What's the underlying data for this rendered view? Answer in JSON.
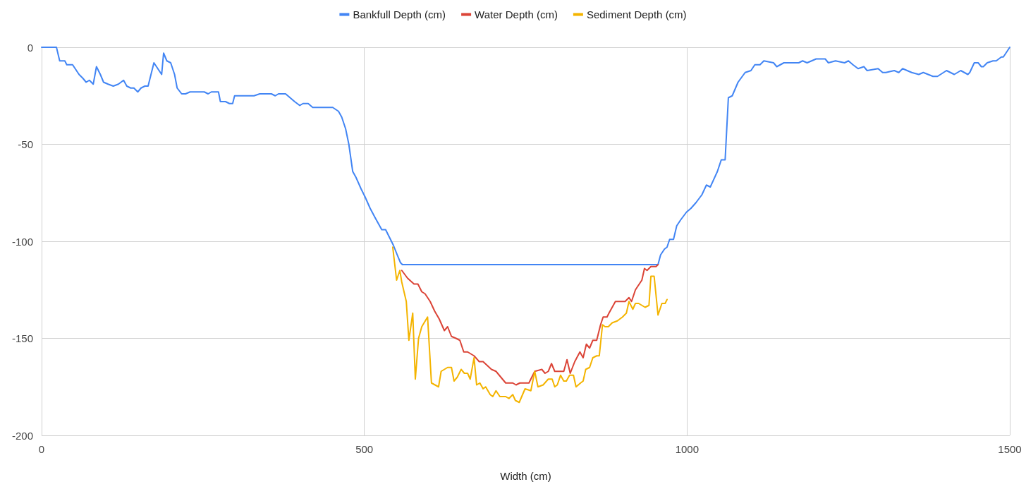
{
  "chart_data": {
    "type": "line",
    "xlabel": "Width (cm)",
    "xlim": [
      0,
      1500
    ],
    "xticks": [
      0,
      500,
      1000,
      1500
    ],
    "ylim": [
      -200,
      0
    ],
    "yticks": [
      -200,
      -150,
      -100,
      -50,
      0
    ],
    "grid": true,
    "legend": "top",
    "marker": "none",
    "line_style": "solid",
    "series": [
      {
        "name": "Bankfull Depth (cm)",
        "color": "#4285f4",
        "x": [
          0,
          23,
          28,
          36,
          39,
          48,
          52,
          58,
          64,
          69,
          74,
          80,
          85,
          91,
          96,
          103,
          111,
          119,
          127,
          132,
          138,
          143,
          149,
          154,
          160,
          165,
          174,
          182,
          186,
          189,
          194,
          200,
          206,
          210,
          217,
          223,
          230,
          252,
          258,
          263,
          274,
          277,
          285,
          291,
          296,
          299,
          329,
          338,
          356,
          362,
          367,
          378,
          385,
          392,
          400,
          405,
          413,
          420,
          427,
          444,
          451,
          460,
          465,
          471,
          476,
          482,
          487,
          495,
          501,
          509,
          517,
          522,
          527,
          533,
          539,
          545,
          551,
          556,
          559,
          955,
          959,
          965,
          969,
          973,
          979,
          984,
          990,
          999,
          1006,
          1014,
          1023,
          1030,
          1036,
          1047,
          1053,
          1059,
          1064,
          1070,
          1079,
          1090,
          1099,
          1105,
          1113,
          1119,
          1134,
          1139,
          1150,
          1159,
          1173,
          1179,
          1186,
          1200,
          1214,
          1219,
          1230,
          1244,
          1250,
          1257,
          1265,
          1274,
          1279,
          1296,
          1303,
          1308,
          1321,
          1328,
          1334,
          1348,
          1359,
          1366,
          1381,
          1388,
          1402,
          1414,
          1424,
          1435,
          1438,
          1445,
          1451,
          1456,
          1459,
          1465,
          1474,
          1479,
          1487,
          1490,
          1500
        ],
        "values": [
          0,
          0,
          -7,
          -7,
          -9,
          -9,
          -11,
          -14,
          -16,
          -18,
          -17,
          -19,
          -10,
          -14,
          -18,
          -19,
          -20,
          -19,
          -17,
          -20,
          -21,
          -21,
          -23,
          -21,
          -20,
          -20,
          -8,
          -12,
          -14,
          -3,
          -7,
          -8,
          -14,
          -21,
          -24,
          -24,
          -23,
          -23,
          -24,
          -23,
          -23,
          -28,
          -28,
          -29,
          -29,
          -25,
          -25,
          -24,
          -24,
          -25,
          -24,
          -24,
          -26,
          -28,
          -30,
          -29,
          -29,
          -31,
          -31,
          -31,
          -31,
          -33,
          -36,
          -42,
          -50,
          -64,
          -67,
          -73,
          -77,
          -83,
          -88,
          -91,
          -94,
          -94,
          -98,
          -102,
          -107,
          -111,
          -112,
          -112,
          -107,
          -104,
          -103,
          -99,
          -99,
          -92,
          -89,
          -85,
          -83,
          -80,
          -76,
          -71,
          -72,
          -64,
          -58,
          -58,
          -26,
          -25,
          -18,
          -13,
          -12,
          -9,
          -9,
          -7,
          -8,
          -10,
          -8,
          -8,
          -8,
          -7,
          -8,
          -6,
          -6,
          -8,
          -7,
          -8,
          -7,
          -9,
          -11,
          -10,
          -12,
          -11,
          -13,
          -13,
          -12,
          -13,
          -11,
          -13,
          -14,
          -13,
          -15,
          -15,
          -12,
          -14,
          -12,
          -14,
          -13,
          -8,
          -8,
          -10,
          -10,
          -8,
          -7,
          -7,
          -5,
          -5,
          0
        ]
      },
      {
        "name": "Water Depth (cm)",
        "color": "#db4437",
        "x": [
          558,
          567,
          577,
          583,
          589,
          594,
          602,
          609,
          616,
          624,
          629,
          635,
          642,
          648,
          654,
          660,
          670,
          678,
          684,
          697,
          704,
          719,
          730,
          735,
          741,
          755,
          764,
          775,
          780,
          785,
          790,
          795,
          809,
          814,
          819,
          826,
          834,
          839,
          844,
          849,
          854,
          860,
          866,
          870,
          876,
          879,
          889,
          904,
          910,
          914,
          920,
          930,
          934,
          938,
          944,
          952,
          955
        ],
        "values": [
          -115,
          -119,
          -122,
          -122,
          -126,
          -127,
          -131,
          -136,
          -140,
          -146,
          -144,
          -149,
          -150,
          -151,
          -157,
          -157,
          -159,
          -162,
          -162,
          -166,
          -167,
          -173,
          -173,
          -174,
          -173,
          -173,
          -167,
          -166,
          -168,
          -167,
          -163,
          -167,
          -167,
          -161,
          -168,
          -162,
          -157,
          -160,
          -153,
          -155,
          -151,
          -151,
          -143,
          -139,
          -139,
          -137,
          -131,
          -131,
          -129,
          -131,
          -125,
          -120,
          -114,
          -115,
          -113,
          -113,
          -112
        ]
      },
      {
        "name": "Sediment Depth (cm)",
        "color": "#f4b400",
        "x": [
          544,
          550,
          555,
          558,
          565,
          569,
          575,
          579,
          584,
          589,
          598,
          604,
          615,
          619,
          629,
          635,
          639,
          644,
          650,
          655,
          660,
          664,
          670,
          674,
          679,
          684,
          688,
          695,
          699,
          704,
          710,
          719,
          724,
          730,
          734,
          740,
          749,
          758,
          764,
          769,
          777,
          785,
          791,
          795,
          799,
          804,
          809,
          813,
          818,
          824,
          828,
          835,
          839,
          843,
          849,
          854,
          860,
          864,
          869,
          873,
          878,
          884,
          892,
          900,
          906,
          910,
          916,
          920,
          925,
          935,
          941,
          944,
          949,
          955,
          961,
          966,
          969
        ],
        "values": [
          -103,
          -120,
          -115,
          -121,
          -131,
          -151,
          -137,
          -171,
          -150,
          -144,
          -139,
          -173,
          -175,
          -167,
          -165,
          -165,
          -172,
          -170,
          -166,
          -168,
          -168,
          -171,
          -160,
          -174,
          -173,
          -176,
          -175,
          -179,
          -180,
          -177,
          -180,
          -180,
          -181,
          -179,
          -182,
          -183,
          -176,
          -177,
          -167,
          -175,
          -174,
          -171,
          -171,
          -175,
          -174,
          -169,
          -172,
          -172,
          -169,
          -169,
          -175,
          -173,
          -172,
          -166,
          -165,
          -160,
          -159,
          -159,
          -143,
          -144,
          -144,
          -142,
          -141,
          -139,
          -137,
          -131,
          -135,
          -132,
          -132,
          -134,
          -133,
          -118,
          -118,
          -138,
          -132,
          -132,
          -130
        ]
      }
    ]
  }
}
